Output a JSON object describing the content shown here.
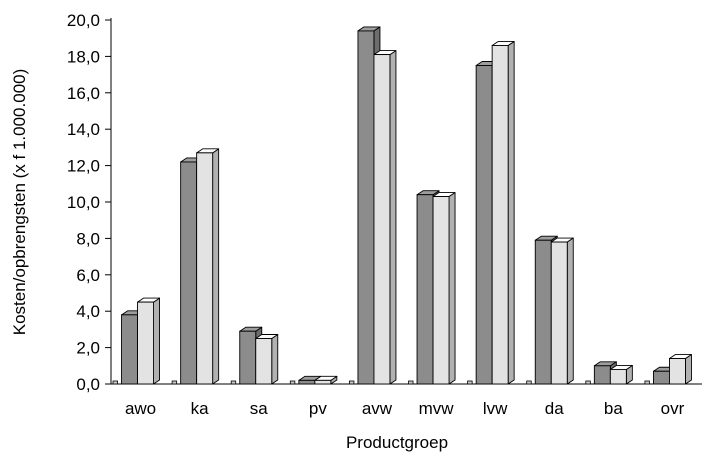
{
  "chart_data": {
    "type": "bar",
    "style": "3d-clustered-column",
    "title": "",
    "xlabel": "Productgroep",
    "ylabel": "Kosten/opbrengsten (x f 1.000.000)",
    "ylim": [
      0,
      20
    ],
    "ytick_step": 2,
    "ytick_labels": [
      "0,0",
      "2,0",
      "4,0",
      "6,0",
      "8,0",
      "10,0",
      "12,0",
      "14,0",
      "16,0",
      "18,0",
      "20,0"
    ],
    "grid": false,
    "legend": "none",
    "categories": [
      "awo",
      "ka",
      "sa",
      "pv",
      "avw",
      "mvw",
      "lvw",
      "da",
      "ba",
      "ovr"
    ],
    "series": [
      {
        "color": "#8c8c8c",
        "values": [
          3.8,
          12.2,
          2.9,
          0.2,
          19.4,
          10.4,
          17.5,
          7.9,
          1.0,
          0.7
        ]
      },
      {
        "color": "#e3e3e3",
        "values": [
          4.5,
          12.7,
          2.5,
          0.2,
          18.1,
          10.3,
          18.6,
          7.8,
          0.8,
          1.4
        ]
      }
    ]
  }
}
